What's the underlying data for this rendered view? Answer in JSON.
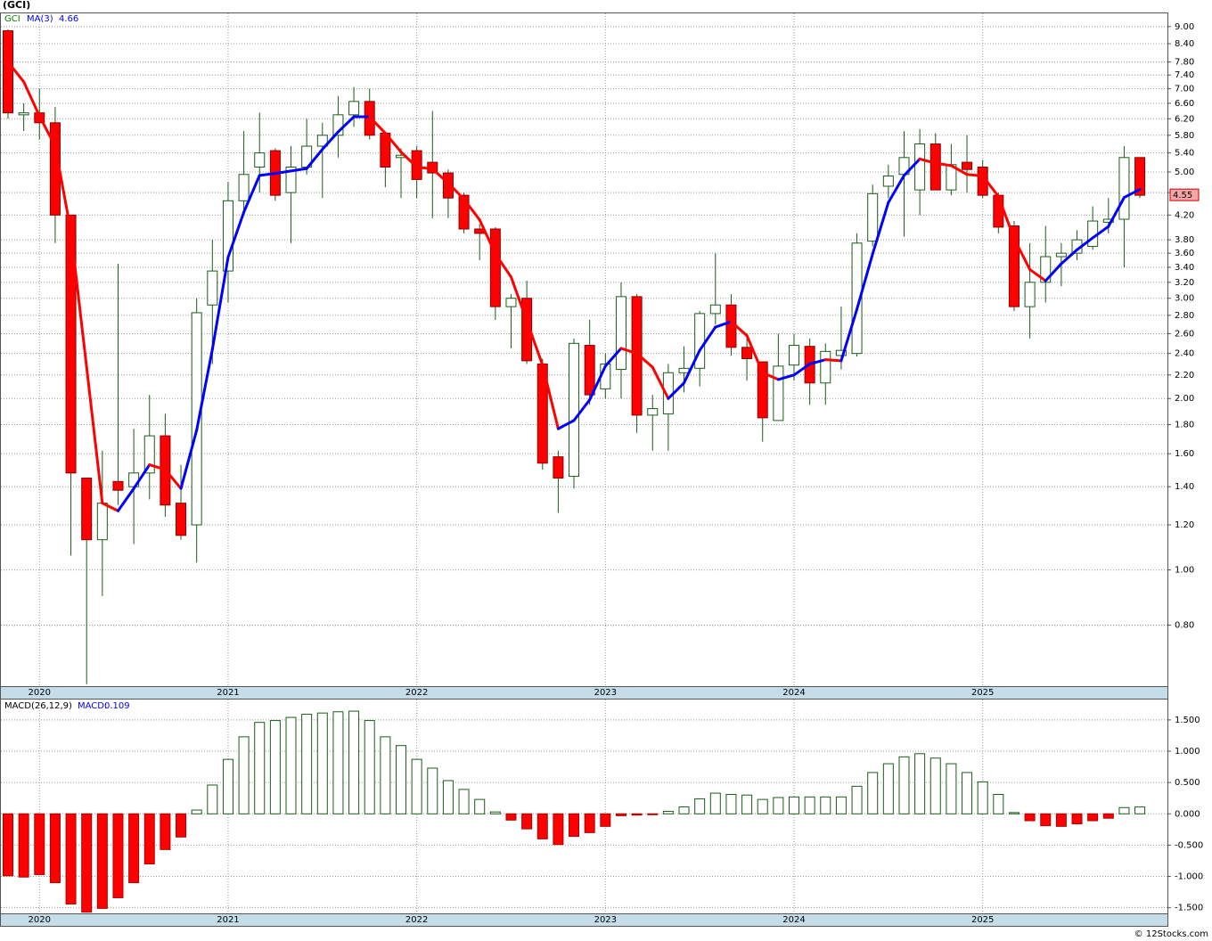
{
  "chart_data": [
    {
      "type": "candlestick",
      "title": "(GCI)",
      "categories": [
        null,
        null,
        "2020",
        null,
        null,
        null,
        null,
        null,
        null,
        null,
        null,
        null,
        null,
        null,
        "2021",
        null,
        null,
        null,
        null,
        null,
        null,
        null,
        null,
        null,
        null,
        null,
        "2022",
        null,
        null,
        null,
        null,
        null,
        null,
        null,
        null,
        null,
        null,
        null,
        "2023",
        null,
        null,
        null,
        null,
        null,
        null,
        null,
        null,
        null,
        null,
        null,
        "2024",
        null,
        null,
        null,
        null,
        null,
        null,
        null,
        null,
        null,
        null,
        null,
        "2025",
        null,
        null,
        null,
        null,
        null,
        null,
        null,
        null,
        null,
        null
      ],
      "series": [
        {
          "name": "GCI",
          "color": "#008000",
          "up_color": "#ffffff",
          "down_color": "#ff0000",
          "edge_color": "#1a5c1a",
          "open": [
            8.85,
            6.3,
            6.35,
            6.1,
            4.2,
            1.45,
            1.13,
            1.43,
            1.4,
            1.48,
            1.72,
            1.31,
            1.2,
            2.92,
            3.35,
            4.45,
            5.1,
            5.45,
            4.6,
            5.1,
            5.55,
            5.8,
            6.3,
            6.65,
            5.85,
            5.3,
            5.45,
            5.2,
            4.98,
            4.55,
            3.97,
            3.97,
            2.9,
            3.0,
            2.3,
            1.58,
            1.46,
            2.48,
            2.08,
            2.25,
            3.02,
            1.87,
            1.88,
            2.22,
            2.26,
            2.82,
            2.92,
            2.46,
            2.32,
            1.83,
            2.29,
            2.47,
            2.13,
            2.38,
            2.4,
            3.78,
            4.72,
            4.95,
            4.65,
            5.6,
            4.65,
            5.2,
            5.1,
            4.55,
            4.02,
            2.9,
            3.2,
            3.55,
            3.6,
            3.7,
            4.08,
            4.13,
            5.3
          ],
          "high": [
            8.9,
            6.6,
            7.0,
            6.5,
            4.2,
            1.45,
            1.62,
            3.45,
            1.77,
            2.03,
            1.88,
            1.53,
            3.0,
            3.8,
            4.8,
            5.9,
            6.35,
            5.5,
            5.55,
            6.2,
            6.1,
            6.8,
            7.05,
            7.0,
            5.85,
            5.5,
            5.55,
            6.4,
            5.05,
            4.6,
            4.05,
            4.0,
            3.05,
            3.22,
            2.35,
            1.62,
            2.55,
            2.75,
            2.4,
            3.2,
            3.05,
            2.03,
            2.3,
            2.47,
            2.85,
            3.6,
            3.05,
            2.55,
            2.32,
            2.6,
            2.6,
            2.55,
            2.5,
            2.9,
            3.9,
            4.75,
            5.15,
            5.9,
            5.95,
            5.85,
            5.6,
            5.8,
            5.25,
            4.6,
            4.1,
            3.75,
            4.02,
            3.75,
            3.95,
            4.35,
            4.5,
            5.55,
            5.3
          ],
          "low": [
            6.2,
            5.9,
            5.7,
            3.75,
            1.06,
            0.63,
            0.9,
            1.3,
            1.11,
            1.33,
            1.24,
            1.13,
            1.03,
            2.3,
            2.95,
            4.2,
            4.6,
            4.45,
            3.75,
            4.95,
            4.5,
            5.3,
            6.0,
            5.7,
            4.7,
            4.5,
            4.5,
            4.15,
            4.15,
            3.9,
            3.5,
            2.75,
            2.45,
            2.3,
            1.5,
            1.26,
            1.39,
            1.95,
            2.0,
            2.0,
            1.74,
            1.62,
            1.62,
            2.05,
            2.1,
            2.7,
            2.38,
            2.15,
            1.68,
            1.83,
            2.15,
            1.95,
            1.95,
            2.25,
            2.37,
            3.7,
            4.5,
            3.85,
            4.2,
            4.65,
            4.55,
            4.6,
            4.5,
            3.9,
            2.85,
            2.55,
            2.95,
            3.15,
            3.5,
            3.65,
            3.9,
            3.4,
            4.5
          ],
          "close": [
            6.35,
            6.35,
            6.1,
            4.2,
            1.48,
            1.13,
            1.31,
            1.38,
            1.48,
            1.72,
            1.3,
            1.15,
            2.83,
            3.35,
            4.45,
            4.95,
            5.4,
            4.55,
            5.1,
            5.55,
            5.8,
            6.3,
            6.65,
            5.8,
            5.1,
            5.35,
            4.85,
            4.98,
            4.5,
            3.97,
            3.9,
            2.9,
            3.0,
            2.33,
            1.54,
            1.45,
            2.5,
            2.03,
            2.3,
            3.02,
            1.87,
            1.92,
            2.22,
            2.26,
            2.82,
            2.92,
            2.46,
            2.35,
            1.85,
            2.28,
            2.48,
            2.13,
            2.42,
            2.43,
            3.75,
            4.58,
            4.92,
            5.3,
            5.6,
            4.65,
            5.15,
            5.05,
            4.55,
            4.0,
            2.9,
            3.2,
            3.55,
            3.6,
            3.8,
            4.1,
            4.13,
            5.3,
            4.55
          ]
        },
        {
          "name": "MA(3)",
          "type": "line",
          "color": "#0000ff",
          "down_color": "#ff0000",
          "values": [
            7.8,
            7.2,
            6.27,
            5.55,
            3.93,
            2.27,
            1.31,
            1.27,
            1.39,
            1.53,
            1.5,
            1.39,
            1.76,
            2.44,
            3.54,
            4.25,
            4.93,
            4.97,
            5.02,
            5.07,
            5.48,
            5.88,
            6.25,
            6.25,
            5.85,
            5.42,
            5.1,
            5.06,
            4.78,
            4.48,
            4.12,
            3.59,
            3.27,
            2.74,
            2.29,
            1.77,
            1.83,
            1.99,
            2.28,
            2.45,
            2.4,
            2.27,
            2.0,
            2.13,
            2.43,
            2.67,
            2.73,
            2.58,
            2.22,
            2.16,
            2.2,
            2.3,
            2.34,
            2.33,
            2.87,
            3.59,
            4.42,
            4.93,
            5.27,
            5.18,
            5.13,
            4.95,
            4.92,
            4.53,
            3.82,
            3.37,
            3.22,
            3.45,
            3.65,
            3.83,
            4.01,
            4.51,
            4.66
          ]
        }
      ],
      "ylim": [
        0.625,
        9.53
      ],
      "log_scale": true,
      "grid": true,
      "yticks": [
        {
          "value": 0.8,
          "label": "0.80"
        },
        {
          "value": 1.0,
          "label": "1.00"
        },
        {
          "value": 1.2,
          "label": "1.20"
        },
        {
          "value": 1.4,
          "label": "1.40"
        },
        {
          "value": 1.6,
          "label": "1.60"
        },
        {
          "value": 1.8,
          "label": "1.80"
        },
        {
          "value": 2.0,
          "label": "2.00"
        },
        {
          "value": 2.2,
          "label": "2.20"
        },
        {
          "value": 2.4,
          "label": "2.40"
        },
        {
          "value": 2.6,
          "label": "2.60"
        },
        {
          "value": 2.8,
          "label": "2.80"
        },
        {
          "value": 3.0,
          "label": "3.00"
        },
        {
          "value": 3.2,
          "label": "3.20"
        },
        {
          "value": 3.4,
          "label": "3.40"
        },
        {
          "value": 3.6,
          "label": "3.60"
        },
        {
          "value": 3.8,
          "label": "3.80"
        },
        {
          "value": 4.2,
          "label": "4.20"
        },
        {
          "value": 4.6,
          "label": "4.60"
        },
        {
          "value": 5.0,
          "label": "5.00"
        },
        {
          "value": 5.4,
          "label": "5.40"
        },
        {
          "value": 5.8,
          "label": "5.80"
        },
        {
          "value": 6.2,
          "label": "6.20"
        },
        {
          "value": 6.6,
          "label": "6.60"
        },
        {
          "value": 7.0,
          "label": "7.00"
        },
        {
          "value": 7.4,
          "label": "7.40"
        },
        {
          "value": 7.8,
          "label": "7.80"
        },
        {
          "value": 8.4,
          "label": "8.40"
        },
        {
          "value": 9.0,
          "label": "9.00"
        }
      ]
    },
    {
      "type": "bar",
      "series": [
        {
          "name": "MACD(26,12,9)",
          "label": "MACD:",
          "color": "#ff0000",
          "up_color": "#ffffff",
          "edge_color": "#1a5c1a",
          "values": [
            -0.99,
            -1.01,
            -0.97,
            -1.1,
            -1.44,
            -1.57,
            -1.51,
            -1.34,
            -1.1,
            -0.8,
            -0.57,
            -0.37,
            0.06,
            0.46,
            0.87,
            1.23,
            1.46,
            1.49,
            1.54,
            1.59,
            1.61,
            1.63,
            1.64,
            1.49,
            1.23,
            1.09,
            0.87,
            0.73,
            0.53,
            0.39,
            0.23,
            0.03,
            -0.1,
            -0.24,
            -0.4,
            -0.49,
            -0.36,
            -0.3,
            -0.2,
            -0.03,
            -0.02,
            -0.01,
            0.04,
            0.11,
            0.24,
            0.33,
            0.31,
            0.3,
            0.23,
            0.26,
            0.27,
            0.27,
            0.27,
            0.27,
            0.44,
            0.66,
            0.8,
            0.91,
            0.96,
            0.89,
            0.8,
            0.66,
            0.51,
            0.31,
            0.02,
            -0.11,
            -0.19,
            -0.2,
            -0.16,
            -0.11,
            -0.07,
            0.1,
            0.109
          ]
        }
      ],
      "ylim": [
        -1.59,
        1.84
      ],
      "grid": true,
      "yticks": [
        {
          "value": -1.5,
          "label": "-1.500"
        },
        {
          "value": -1.0,
          "label": "-1.000"
        },
        {
          "value": -0.5,
          "label": "-0.500"
        },
        {
          "value": 0,
          "label": "0.000"
        },
        {
          "value": 0.5,
          "label": "0.500"
        },
        {
          "value": 1.0,
          "label": "1.000"
        },
        {
          "value": 1.5,
          "label": "1.500"
        }
      ]
    }
  ],
  "footer": "© 12Stocks.com"
}
